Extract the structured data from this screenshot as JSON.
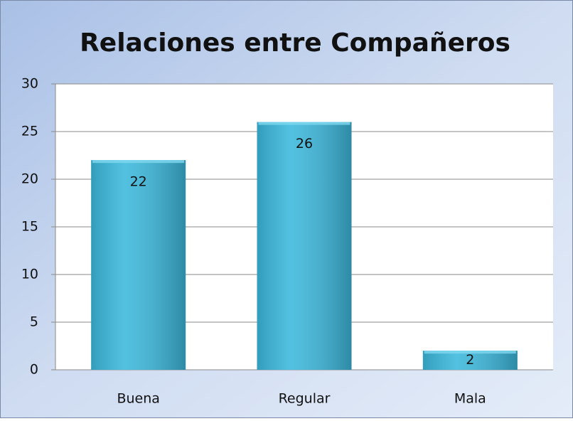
{
  "chart_data": {
    "type": "bar",
    "title": "Relaciones entre Compañeros",
    "categories": [
      "Buena",
      "Regular",
      "Mala"
    ],
    "values": [
      22,
      26,
      2
    ],
    "color": "#3bb8dc",
    "ylim": [
      0,
      30
    ],
    "yticks": [
      0,
      5,
      10,
      15,
      20,
      25,
      30
    ],
    "grid": true
  }
}
